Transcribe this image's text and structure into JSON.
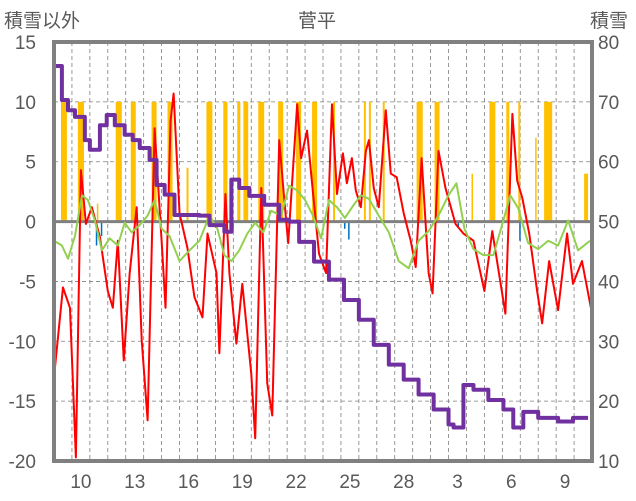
{
  "chart_data": {
    "type": "line",
    "title": "菅平",
    "ylabel_left": "積雪以外",
    "ylabel_right": "積雪",
    "ylim_left": [
      -20,
      15
    ],
    "ylim_right": [
      10,
      80
    ],
    "yticks_left": [
      15,
      10,
      5,
      0,
      -5,
      -10,
      -15,
      -20
    ],
    "yticks_right": [
      80,
      70,
      60,
      50,
      40,
      30,
      20,
      10
    ],
    "xlim_days": [
      0,
      30
    ],
    "x_unit": "days since first day shown (day label 9)",
    "xtick_labels": [
      {
        "t": 1.5,
        "label": "10"
      },
      {
        "t": 4.5,
        "label": "13"
      },
      {
        "t": 7.5,
        "label": "16"
      },
      {
        "t": 10.5,
        "label": "19"
      },
      {
        "t": 13.5,
        "label": "22"
      },
      {
        "t": 16.5,
        "label": "25"
      },
      {
        "t": 19.5,
        "label": "28"
      },
      {
        "t": 22.5,
        "label": "3"
      },
      {
        "t": 25.5,
        "label": "6"
      },
      {
        "t": 28.5,
        "label": "9"
      }
    ],
    "grid": true,
    "colors": {
      "red": "#ff0000",
      "green": "#92d050",
      "purple": "#7030a0",
      "orange": "#ffc000",
      "blue": "#0070c0",
      "frame": "#808080"
    },
    "series": [
      {
        "name": "orange_bars",
        "axis": "left",
        "kind": "bar",
        "bars": [
          [
            0.39,
            0.72,
            10
          ],
          [
            1.33,
            1.67,
            10
          ],
          [
            2.39,
            2.45,
            1.5
          ],
          [
            3.44,
            3.78,
            10
          ],
          [
            4.28,
            4.56,
            10
          ],
          [
            5.44,
            5.72,
            10
          ],
          [
            6.33,
            6.61,
            10
          ],
          [
            7.39,
            7.5,
            4.5
          ],
          [
            8.5,
            8.83,
            10
          ],
          [
            9.44,
            9.67,
            10
          ],
          [
            10.22,
            10.39,
            10
          ],
          [
            10.56,
            10.83,
            10
          ],
          [
            11.39,
            11.72,
            10
          ],
          [
            12.5,
            12.78,
            10
          ],
          [
            13.5,
            13.78,
            10
          ],
          [
            14.39,
            14.67,
            10
          ],
          [
            15.56,
            15.67,
            10
          ],
          [
            17.28,
            17.39,
            10
          ],
          [
            17.56,
            17.67,
            10
          ],
          [
            18.33,
            18.44,
            10
          ],
          [
            20.22,
            20.56,
            10
          ],
          [
            21.22,
            21.5,
            10
          ],
          [
            23.28,
            23.33,
            4
          ],
          [
            24.28,
            24.61,
            10
          ],
          [
            25.22,
            25.39,
            10
          ],
          [
            25.89,
            26.0,
            10
          ],
          [
            26.83,
            26.89,
            7
          ],
          [
            27.33,
            27.78,
            10
          ],
          [
            29.56,
            29.78,
            4
          ]
        ]
      },
      {
        "name": "blue_bars",
        "axis": "left",
        "kind": "bar",
        "bars": [
          [
            2.33,
            2.4,
            -2
          ],
          [
            2.61,
            2.68,
            -1.2
          ],
          [
            9.94,
            10.0,
            -0.8
          ],
          [
            16.17,
            16.22,
            -0.6
          ],
          [
            16.4,
            16.46,
            -1.5
          ],
          [
            22.5,
            22.56,
            -0.5
          ],
          [
            25.94,
            26.0,
            -1.6
          ]
        ]
      },
      {
        "name": "red",
        "axis": "left",
        "kind": "line",
        "points": [
          [
            0,
            -13
          ],
          [
            0.5,
            -5.5
          ],
          [
            0.89,
            -7.2
          ],
          [
            1.22,
            -19.7
          ],
          [
            1.5,
            4.3
          ],
          [
            1.78,
            -0.2
          ],
          [
            2.11,
            1.2
          ],
          [
            2.56,
            -1.3
          ],
          [
            3.0,
            -5.8
          ],
          [
            3.28,
            -7.2
          ],
          [
            3.56,
            -1.6
          ],
          [
            3.89,
            -11.6
          ],
          [
            4.22,
            -4.3
          ],
          [
            4.61,
            1.2
          ],
          [
            4.89,
            -9.9
          ],
          [
            5.22,
            -16.6
          ],
          [
            5.61,
            7.8
          ],
          [
            6.0,
            -1.6
          ],
          [
            6.22,
            -7.2
          ],
          [
            6.5,
            8.4
          ],
          [
            6.67,
            10.7
          ],
          [
            7.0,
            0.7
          ],
          [
            7.44,
            -2.2
          ],
          [
            7.83,
            -6.3
          ],
          [
            8.28,
            -8.0
          ],
          [
            8.56,
            -1.0
          ],
          [
            9.06,
            -4.3
          ],
          [
            9.22,
            -11.0
          ],
          [
            9.56,
            2.3
          ],
          [
            9.78,
            -4.3
          ],
          [
            10.17,
            -10.2
          ],
          [
            10.5,
            -5.2
          ],
          [
            11.0,
            -12.7
          ],
          [
            11.22,
            -18.1
          ],
          [
            11.56,
            2.8
          ],
          [
            11.89,
            -13.5
          ],
          [
            12.17,
            -16.2
          ],
          [
            12.56,
            6.8
          ],
          [
            12.83,
            2.0
          ],
          [
            13.06,
            -1.8
          ],
          [
            13.56,
            9.8
          ],
          [
            13.78,
            5.3
          ],
          [
            14.11,
            7.6
          ],
          [
            14.39,
            3.2
          ],
          [
            14.78,
            -2.7
          ],
          [
            15.17,
            -4.3
          ],
          [
            15.5,
            9.8
          ],
          [
            15.78,
            2.3
          ],
          [
            16.11,
            5.7
          ],
          [
            16.33,
            3.2
          ],
          [
            16.61,
            5.3
          ],
          [
            16.83,
            2.6
          ],
          [
            17.11,
            1.2
          ],
          [
            17.39,
            5.9
          ],
          [
            17.56,
            6.8
          ],
          [
            17.83,
            2.8
          ],
          [
            18.11,
            1.2
          ],
          [
            18.5,
            9.3
          ],
          [
            18.78,
            4.0
          ],
          [
            19.11,
            3.7
          ],
          [
            19.5,
            0.7
          ],
          [
            19.89,
            -1.6
          ],
          [
            20.17,
            -3.8
          ],
          [
            20.5,
            5.3
          ],
          [
            20.89,
            -4.3
          ],
          [
            21.11,
            -6.0
          ],
          [
            21.44,
            5.9
          ],
          [
            21.83,
            2.8
          ],
          [
            22.39,
            -0.2
          ],
          [
            22.83,
            -1.0
          ],
          [
            23.39,
            -1.6
          ],
          [
            24.0,
            -5.8
          ],
          [
            24.44,
            -0.8
          ],
          [
            25.17,
            -7.7
          ],
          [
            25.56,
            9.0
          ],
          [
            25.83,
            3.4
          ],
          [
            26.11,
            2.0
          ],
          [
            26.5,
            -1.0
          ],
          [
            26.94,
            -5.8
          ],
          [
            27.22,
            -8.5
          ],
          [
            27.61,
            -3.3
          ],
          [
            28.11,
            -7.4
          ],
          [
            28.61,
            -1.0
          ],
          [
            28.94,
            -5.2
          ],
          [
            29.44,
            -3.3
          ],
          [
            29.94,
            -7.2
          ]
        ]
      },
      {
        "name": "green",
        "axis": "left",
        "kind": "line",
        "points": [
          [
            0,
            -1.6
          ],
          [
            0.44,
            -2.0
          ],
          [
            0.78,
            -3.1
          ],
          [
            1.17,
            -1.2
          ],
          [
            1.56,
            2.2
          ],
          [
            1.89,
            1.8
          ],
          [
            2.28,
            0.1
          ],
          [
            2.67,
            -2.4
          ],
          [
            3.11,
            -1.4
          ],
          [
            3.56,
            -2.0
          ],
          [
            3.94,
            -0.1
          ],
          [
            4.33,
            -0.9
          ],
          [
            4.78,
            -0.3
          ],
          [
            5.22,
            0.5
          ],
          [
            5.61,
            1.8
          ],
          [
            6.0,
            -0.6
          ],
          [
            6.44,
            -1.2
          ],
          [
            7.0,
            -3.3
          ],
          [
            7.56,
            -2.4
          ],
          [
            8.11,
            -1.6
          ],
          [
            8.67,
            0.5
          ],
          [
            9.11,
            -0.6
          ],
          [
            9.5,
            -2.8
          ],
          [
            9.89,
            -3.3
          ],
          [
            10.33,
            -2.4
          ],
          [
            10.78,
            -1.0
          ],
          [
            11.22,
            -0.1
          ],
          [
            11.67,
            -0.9
          ],
          [
            12.11,
            0.9
          ],
          [
            12.67,
            0.5
          ],
          [
            13.11,
            3.0
          ],
          [
            13.56,
            2.6
          ],
          [
            14.0,
            1.8
          ],
          [
            14.44,
            0.5
          ],
          [
            14.89,
            -1.4
          ],
          [
            15.33,
            1.8
          ],
          [
            15.78,
            1.2
          ],
          [
            16.22,
            0.3
          ],
          [
            16.67,
            1.3
          ],
          [
            17.11,
            2.2
          ],
          [
            17.56,
            1.9
          ],
          [
            18.11,
            0.5
          ],
          [
            18.67,
            -0.9
          ],
          [
            19.22,
            -3.3
          ],
          [
            19.78,
            -3.9
          ],
          [
            20.33,
            -1.6
          ],
          [
            20.89,
            -0.8
          ],
          [
            21.44,
            0.5
          ],
          [
            22.0,
            2.2
          ],
          [
            22.44,
            3.2
          ],
          [
            22.89,
            -0.6
          ],
          [
            23.39,
            -2.3
          ],
          [
            23.94,
            -2.8
          ],
          [
            24.5,
            -2.8
          ],
          [
            25.06,
            0.1
          ],
          [
            25.44,
            2.2
          ],
          [
            25.89,
            1.1
          ],
          [
            26.44,
            -1.8
          ],
          [
            27.0,
            -2.3
          ],
          [
            27.56,
            -1.6
          ],
          [
            28.11,
            -2.0
          ],
          [
            28.67,
            0.1
          ],
          [
            29.22,
            -2.4
          ],
          [
            29.89,
            -1.6
          ]
        ]
      },
      {
        "name": "purple_snow_depth",
        "axis": "right",
        "kind": "step",
        "points": [
          [
            0.06,
            76.0
          ],
          [
            0.44,
            70.3
          ],
          [
            0.78,
            68.6
          ],
          [
            1.17,
            67.5
          ],
          [
            1.72,
            63.6
          ],
          [
            2.0,
            62.0
          ],
          [
            2.28,
            62.0
          ],
          [
            2.56,
            66.1
          ],
          [
            2.94,
            67.8
          ],
          [
            3.39,
            66.1
          ],
          [
            3.94,
            64.5
          ],
          [
            4.39,
            63.6
          ],
          [
            4.78,
            62.3
          ],
          [
            5.33,
            60.3
          ],
          [
            5.72,
            56.1
          ],
          [
            6.17,
            54.5
          ],
          [
            6.72,
            51.1
          ],
          [
            8.11,
            51.0
          ],
          [
            8.67,
            49.4
          ],
          [
            9.5,
            48.3
          ],
          [
            9.89,
            57.0
          ],
          [
            10.33,
            55.6
          ],
          [
            10.89,
            54.3
          ],
          [
            11.72,
            52.8
          ],
          [
            12.56,
            50.3
          ],
          [
            13.11,
            50.0
          ],
          [
            13.67,
            46.6
          ],
          [
            14.5,
            43.3
          ],
          [
            15.33,
            40.3
          ],
          [
            16.17,
            36.9
          ],
          [
            17.0,
            33.6
          ],
          [
            17.83,
            29.4
          ],
          [
            18.67,
            26.1
          ],
          [
            19.5,
            23.6
          ],
          [
            20.33,
            21.1
          ],
          [
            21.17,
            18.6
          ],
          [
            22.0,
            16.1
          ],
          [
            22.28,
            15.6
          ],
          [
            22.83,
            22.7
          ],
          [
            23.39,
            21.9
          ],
          [
            24.22,
            20.2
          ],
          [
            25.06,
            18.6
          ],
          [
            25.61,
            15.6
          ],
          [
            26.0,
            15.6
          ],
          [
            26.17,
            18.2
          ],
          [
            27.0,
            17.2
          ],
          [
            28.11,
            16.6
          ],
          [
            28.94,
            17.2
          ],
          [
            29.78,
            17.2
          ]
        ]
      }
    ]
  }
}
